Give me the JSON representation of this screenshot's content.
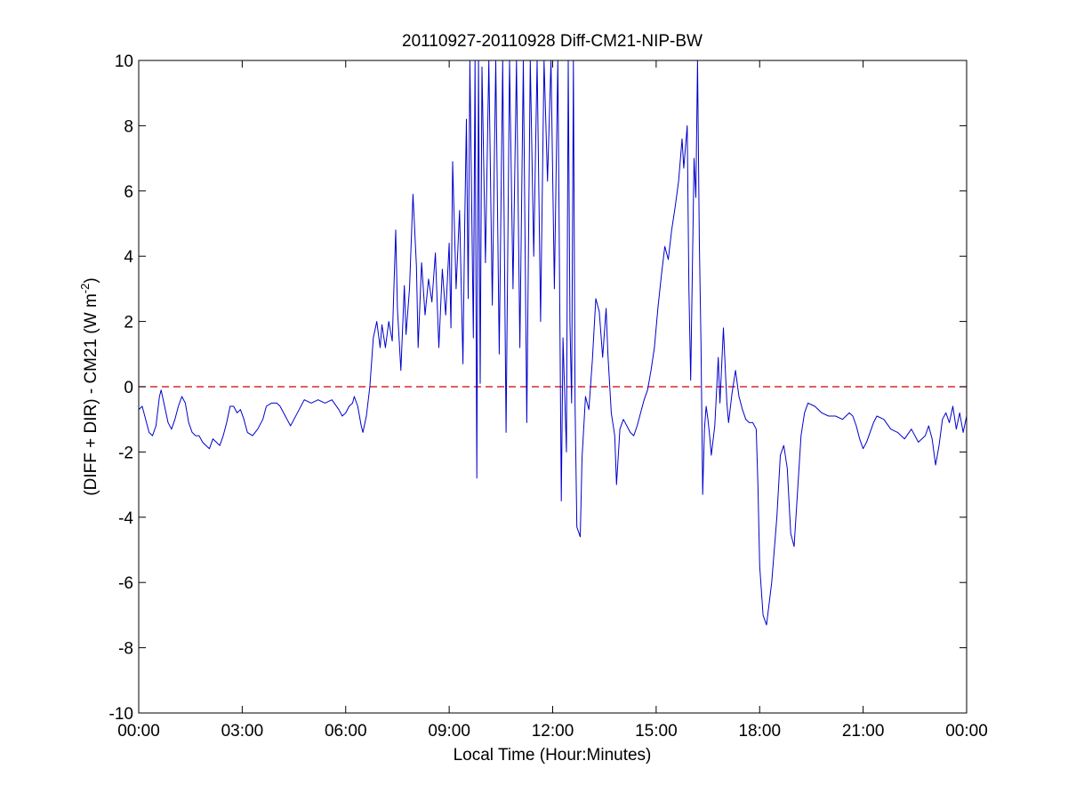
{
  "chart_data": {
    "type": "line",
    "title": "20110927-20110928 Diff-CM21-NIP-BW",
    "xlabel": "Local Time (Hour:Minutes)",
    "ylabel_main": "(DIFF + DIR) - CM21 (W m",
    "ylabel_superscript": "-2",
    "ylabel_suffix": ")",
    "x_unit": "hours",
    "xlim": [
      0,
      24
    ],
    "ylim": [
      -10,
      10
    ],
    "x_ticks": [
      0,
      3,
      6,
      9,
      12,
      15,
      18,
      21,
      24
    ],
    "x_tick_labels": [
      "00:00",
      "03:00",
      "06:00",
      "09:00",
      "12:00",
      "15:00",
      "18:00",
      "21:00",
      "00:00"
    ],
    "y_ticks": [
      -10,
      -8,
      -6,
      -4,
      -2,
      0,
      2,
      4,
      6,
      8,
      10
    ],
    "y_tick_labels": [
      "-10",
      "-8",
      "-6",
      "-4",
      "-2",
      "0",
      "2",
      "4",
      "6",
      "8",
      "10"
    ],
    "grid": false,
    "reference_line": {
      "y": 0,
      "color": "#cc0000",
      "style": "dashed"
    },
    "series": [
      {
        "color": "#0000cc",
        "points": [
          [
            0.0,
            -0.7
          ],
          [
            0.1,
            -0.6
          ],
          [
            0.2,
            -1.0
          ],
          [
            0.3,
            -1.4
          ],
          [
            0.4,
            -1.5
          ],
          [
            0.5,
            -1.2
          ],
          [
            0.6,
            -0.3
          ],
          [
            0.65,
            -0.1
          ],
          [
            0.75,
            -0.6
          ],
          [
            0.85,
            -1.1
          ],
          [
            0.95,
            -1.3
          ],
          [
            1.05,
            -1.0
          ],
          [
            1.15,
            -0.6
          ],
          [
            1.25,
            -0.3
          ],
          [
            1.35,
            -0.5
          ],
          [
            1.45,
            -1.1
          ],
          [
            1.55,
            -1.4
          ],
          [
            1.65,
            -1.5
          ],
          [
            1.75,
            -1.5
          ],
          [
            1.85,
            -1.7
          ],
          [
            1.95,
            -1.8
          ],
          [
            2.05,
            -1.9
          ],
          [
            2.15,
            -1.6
          ],
          [
            2.25,
            -1.7
          ],
          [
            2.35,
            -1.8
          ],
          [
            2.45,
            -1.5
          ],
          [
            2.55,
            -1.1
          ],
          [
            2.65,
            -0.6
          ],
          [
            2.75,
            -0.6
          ],
          [
            2.85,
            -0.8
          ],
          [
            2.95,
            -0.7
          ],
          [
            3.05,
            -1.0
          ],
          [
            3.15,
            -1.4
          ],
          [
            3.3,
            -1.5
          ],
          [
            3.45,
            -1.3
          ],
          [
            3.6,
            -1.0
          ],
          [
            3.7,
            -0.6
          ],
          [
            3.85,
            -0.5
          ],
          [
            4.0,
            -0.5
          ],
          [
            4.1,
            -0.6
          ],
          [
            4.2,
            -0.8
          ],
          [
            4.3,
            -1.0
          ],
          [
            4.4,
            -1.2
          ],
          [
            4.5,
            -1.0
          ],
          [
            4.65,
            -0.7
          ],
          [
            4.8,
            -0.4
          ],
          [
            5.0,
            -0.5
          ],
          [
            5.2,
            -0.4
          ],
          [
            5.4,
            -0.5
          ],
          [
            5.6,
            -0.4
          ],
          [
            5.8,
            -0.7
          ],
          [
            5.9,
            -0.9
          ],
          [
            6.0,
            -0.8
          ],
          [
            6.1,
            -0.6
          ],
          [
            6.2,
            -0.5
          ],
          [
            6.25,
            -0.3
          ],
          [
            6.35,
            -0.6
          ],
          [
            6.45,
            -1.2
          ],
          [
            6.5,
            -1.4
          ],
          [
            6.6,
            -0.9
          ],
          [
            6.7,
            0.0
          ],
          [
            6.8,
            1.5
          ],
          [
            6.9,
            2.0
          ],
          [
            7.0,
            1.2
          ],
          [
            7.05,
            1.9
          ],
          [
            7.15,
            1.2
          ],
          [
            7.25,
            2.0
          ],
          [
            7.35,
            1.4
          ],
          [
            7.45,
            4.8
          ],
          [
            7.5,
            2.4
          ],
          [
            7.6,
            0.5
          ],
          [
            7.7,
            3.1
          ],
          [
            7.75,
            1.6
          ],
          [
            7.85,
            3.0
          ],
          [
            7.95,
            5.9
          ],
          [
            8.05,
            3.7
          ],
          [
            8.1,
            1.2
          ],
          [
            8.2,
            3.8
          ],
          [
            8.3,
            2.2
          ],
          [
            8.4,
            3.3
          ],
          [
            8.5,
            2.6
          ],
          [
            8.6,
            4.1
          ],
          [
            8.7,
            1.2
          ],
          [
            8.8,
            3.6
          ],
          [
            8.9,
            2.2
          ],
          [
            9.0,
            4.4
          ],
          [
            9.05,
            1.8
          ],
          [
            9.1,
            6.9
          ],
          [
            9.2,
            3.0
          ],
          [
            9.3,
            5.4
          ],
          [
            9.4,
            0.7
          ],
          [
            9.45,
            5.0
          ],
          [
            9.5,
            8.2
          ],
          [
            9.55,
            2.7
          ],
          [
            9.6,
            10
          ],
          [
            9.7,
            1.5
          ],
          [
            9.75,
            10
          ],
          [
            9.8,
            -2.8
          ],
          [
            9.85,
            10
          ],
          [
            9.9,
            0.1
          ],
          [
            9.95,
            9.8
          ],
          [
            10.05,
            3.8
          ],
          [
            10.15,
            10
          ],
          [
            10.25,
            2.5
          ],
          [
            10.35,
            10
          ],
          [
            10.45,
            1.0
          ],
          [
            10.55,
            10
          ],
          [
            10.65,
            -1.4
          ],
          [
            10.75,
            10
          ],
          [
            10.85,
            3.0
          ],
          [
            10.95,
            10
          ],
          [
            11.05,
            1.2
          ],
          [
            11.15,
            10
          ],
          [
            11.25,
            -1.1
          ],
          [
            11.35,
            10
          ],
          [
            11.45,
            4.0
          ],
          [
            11.55,
            10
          ],
          [
            11.65,
            2.0
          ],
          [
            11.75,
            10
          ],
          [
            11.85,
            6.3
          ],
          [
            11.95,
            10
          ],
          [
            12.05,
            3.0
          ],
          [
            12.15,
            10
          ],
          [
            12.25,
            -3.5
          ],
          [
            12.3,
            1.5
          ],
          [
            12.4,
            -2.0
          ],
          [
            12.45,
            10
          ],
          [
            12.5,
            2.0
          ],
          [
            12.55,
            -0.5
          ],
          [
            12.6,
            10
          ],
          [
            12.65,
            -0.6
          ],
          [
            12.7,
            -4.3
          ],
          [
            12.8,
            -4.6
          ],
          [
            12.85,
            -2.2
          ],
          [
            12.95,
            -0.3
          ],
          [
            13.05,
            -0.7
          ],
          [
            13.15,
            0.8
          ],
          [
            13.25,
            2.7
          ],
          [
            13.35,
            2.3
          ],
          [
            13.45,
            0.9
          ],
          [
            13.55,
            2.4
          ],
          [
            13.6,
            1.0
          ],
          [
            13.7,
            -0.8
          ],
          [
            13.8,
            -1.5
          ],
          [
            13.85,
            -3.0
          ],
          [
            13.95,
            -1.3
          ],
          [
            14.05,
            -1.0
          ],
          [
            14.15,
            -1.2
          ],
          [
            14.25,
            -1.4
          ],
          [
            14.35,
            -1.5
          ],
          [
            14.45,
            -1.2
          ],
          [
            14.55,
            -0.8
          ],
          [
            14.65,
            -0.4
          ],
          [
            14.75,
            -0.1
          ],
          [
            14.85,
            0.5
          ],
          [
            14.95,
            1.2
          ],
          [
            15.05,
            2.4
          ],
          [
            15.15,
            3.4
          ],
          [
            15.25,
            4.3
          ],
          [
            15.35,
            3.9
          ],
          [
            15.45,
            4.8
          ],
          [
            15.55,
            5.5
          ],
          [
            15.65,
            6.3
          ],
          [
            15.75,
            7.6
          ],
          [
            15.8,
            6.7
          ],
          [
            15.9,
            8.0
          ],
          [
            15.95,
            3.0
          ],
          [
            16.0,
            0.2
          ],
          [
            16.05,
            3.6
          ],
          [
            16.1,
            7.0
          ],
          [
            16.15,
            5.8
          ],
          [
            16.2,
            10
          ],
          [
            16.25,
            4.5
          ],
          [
            16.3,
            1.3
          ],
          [
            16.35,
            -3.3
          ],
          [
            16.4,
            -1.3
          ],
          [
            16.45,
            -0.6
          ],
          [
            16.5,
            -1.0
          ],
          [
            16.55,
            -1.5
          ],
          [
            16.6,
            -2.1
          ],
          [
            16.7,
            -1.2
          ],
          [
            16.8,
            0.9
          ],
          [
            16.85,
            -0.5
          ],
          [
            16.95,
            1.8
          ],
          [
            17.05,
            -0.5
          ],
          [
            17.1,
            -1.1
          ],
          [
            17.2,
            -0.2
          ],
          [
            17.3,
            0.5
          ],
          [
            17.4,
            -0.3
          ],
          [
            17.5,
            -0.7
          ],
          [
            17.6,
            -1.0
          ],
          [
            17.7,
            -1.1
          ],
          [
            17.8,
            -1.1
          ],
          [
            17.9,
            -1.3
          ],
          [
            17.95,
            -3.0
          ],
          [
            18.0,
            -5.5
          ],
          [
            18.1,
            -7.0
          ],
          [
            18.2,
            -7.3
          ],
          [
            18.35,
            -6.0
          ],
          [
            18.5,
            -4.0
          ],
          [
            18.6,
            -2.1
          ],
          [
            18.7,
            -1.8
          ],
          [
            18.8,
            -2.5
          ],
          [
            18.9,
            -4.5
          ],
          [
            19.0,
            -4.9
          ],
          [
            19.1,
            -3.2
          ],
          [
            19.2,
            -1.5
          ],
          [
            19.3,
            -0.8
          ],
          [
            19.4,
            -0.5
          ],
          [
            19.6,
            -0.6
          ],
          [
            19.8,
            -0.8
          ],
          [
            20.0,
            -0.9
          ],
          [
            20.2,
            -0.9
          ],
          [
            20.4,
            -1.0
          ],
          [
            20.6,
            -0.8
          ],
          [
            20.7,
            -0.9
          ],
          [
            20.8,
            -1.2
          ],
          [
            20.9,
            -1.6
          ],
          [
            21.0,
            -1.9
          ],
          [
            21.1,
            -1.7
          ],
          [
            21.2,
            -1.4
          ],
          [
            21.3,
            -1.1
          ],
          [
            21.4,
            -0.9
          ],
          [
            21.6,
            -1.0
          ],
          [
            21.8,
            -1.3
          ],
          [
            22.0,
            -1.4
          ],
          [
            22.2,
            -1.6
          ],
          [
            22.4,
            -1.3
          ],
          [
            22.6,
            -1.7
          ],
          [
            22.8,
            -1.5
          ],
          [
            22.9,
            -1.2
          ],
          [
            23.0,
            -1.6
          ],
          [
            23.1,
            -2.4
          ],
          [
            23.2,
            -1.8
          ],
          [
            23.3,
            -1.0
          ],
          [
            23.4,
            -0.8
          ],
          [
            23.5,
            -1.1
          ],
          [
            23.6,
            -0.6
          ],
          [
            23.7,
            -1.3
          ],
          [
            23.8,
            -0.8
          ],
          [
            23.9,
            -1.4
          ],
          [
            24.0,
            -0.9
          ]
        ]
      }
    ]
  }
}
